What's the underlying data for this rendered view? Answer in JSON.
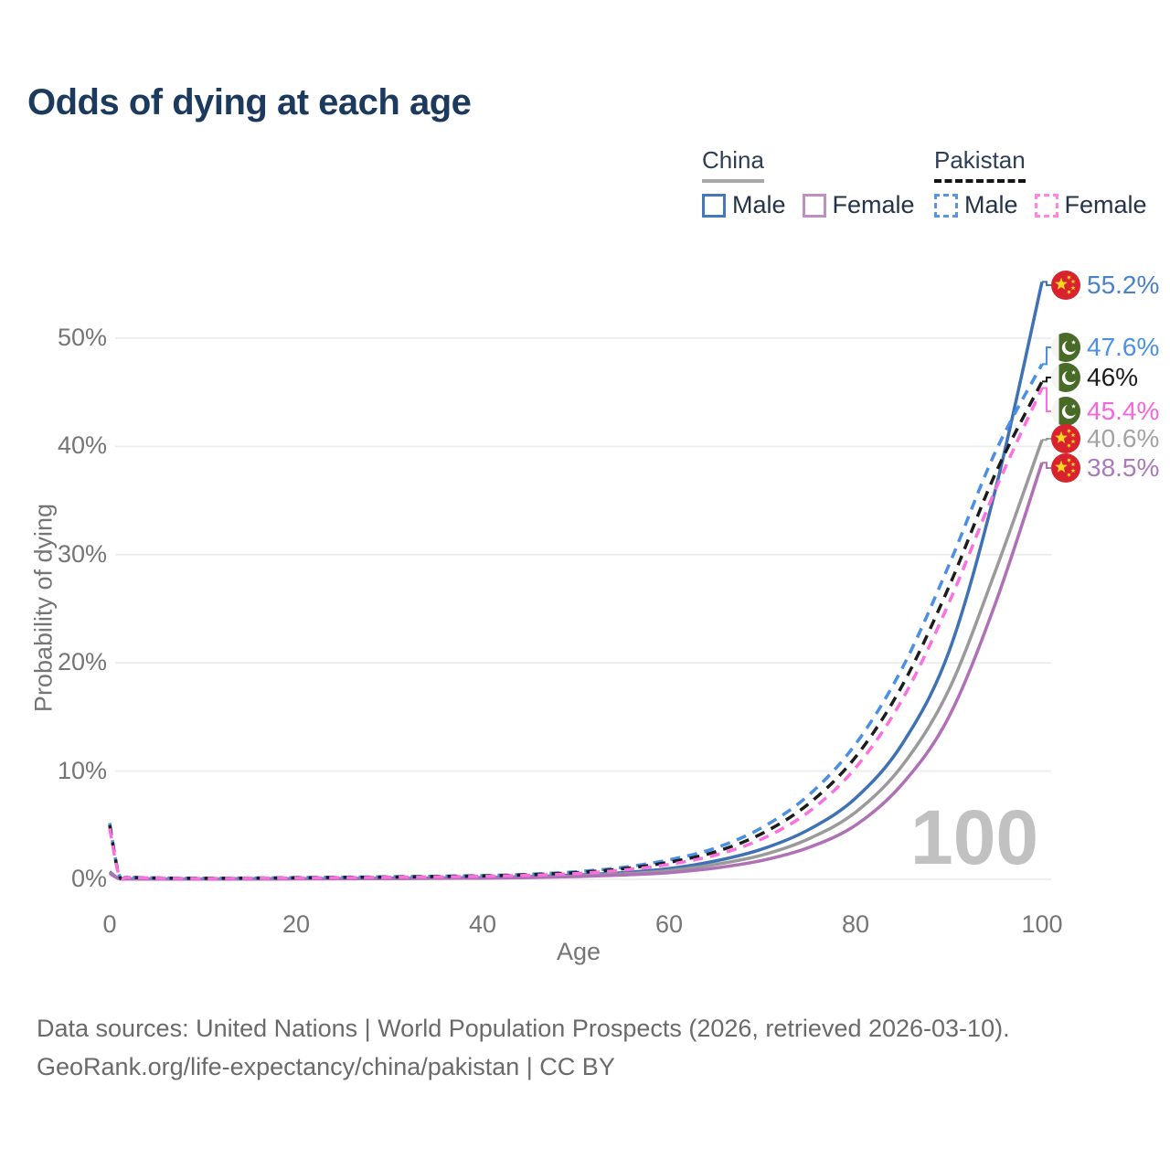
{
  "header": {
    "title": "Odds of dying at each age"
  },
  "legend": {
    "groups": [
      {
        "id": "china",
        "label": "China",
        "line_style": "solid",
        "line_color": "#a8a8a8",
        "items": [
          {
            "label": "Male",
            "color": "#4678b8",
            "dashed": false
          },
          {
            "label": "Female",
            "color": "#c08ec2",
            "dashed": false
          }
        ]
      },
      {
        "id": "pakistan",
        "label": "Pakistan",
        "line_style": "dashed",
        "line_color": "#151515",
        "items": [
          {
            "label": "Male",
            "color": "#5b93e3",
            "dashed": true
          },
          {
            "label": "Female",
            "color": "#ff84e4",
            "dashed": true
          }
        ]
      }
    ]
  },
  "chart_data": {
    "type": "line",
    "title": "Odds of dying at each age",
    "xlabel": "Age",
    "ylabel": "Probability of dying",
    "xlim": [
      0,
      100
    ],
    "ylim": [
      0,
      57
    ],
    "x_ticks": [
      0,
      20,
      40,
      60,
      80,
      100
    ],
    "y_ticks": [
      {
        "v": 0,
        "label": "0%"
      },
      {
        "v": 10,
        "label": "10%"
      },
      {
        "v": 20,
        "label": "20%"
      },
      {
        "v": 30,
        "label": "30%"
      },
      {
        "v": 40,
        "label": "40%"
      },
      {
        "v": 50,
        "label": "50%"
      }
    ],
    "grid": "horizontal",
    "legend_position": "top-right",
    "watermark": "100",
    "ages": [
      0,
      1,
      2,
      5,
      10,
      15,
      20,
      25,
      30,
      35,
      40,
      45,
      50,
      55,
      60,
      65,
      70,
      75,
      80,
      85,
      90,
      95,
      100
    ],
    "series": [
      {
        "id": "china-male",
        "name": "China — Male",
        "country": "China",
        "sex": "Male",
        "color": "#3f72b5",
        "dashed": false,
        "flag": "china",
        "end_value": 55.2,
        "end_label": "55.2%",
        "label_color": "#4a82c6",
        "values": [
          0.7,
          0.08,
          0.05,
          0.03,
          0.03,
          0.04,
          0.06,
          0.08,
          0.1,
          0.13,
          0.17,
          0.25,
          0.4,
          0.62,
          1.0,
          1.7,
          2.8,
          4.6,
          7.5,
          12.5,
          21.0,
          36.0,
          55.2
        ]
      },
      {
        "id": "china-both",
        "name": "China — Both sexes",
        "country": "China",
        "sex": "Both",
        "color": "#9a9a9a",
        "dashed": false,
        "flag": "china",
        "end_value": 40.6,
        "end_label": "40.6%",
        "label_color": "#a3a3a3",
        "values": [
          0.62,
          0.07,
          0.04,
          0.03,
          0.02,
          0.03,
          0.05,
          0.07,
          0.08,
          0.11,
          0.14,
          0.21,
          0.32,
          0.5,
          0.8,
          1.38,
          2.25,
          3.75,
          6.2,
          10.5,
          17.5,
          28.5,
          40.6
        ]
      },
      {
        "id": "china-female",
        "name": "China — Female",
        "country": "China",
        "sex": "Female",
        "color": "#b070b6",
        "dashed": false,
        "flag": "china",
        "end_value": 38.5,
        "end_label": "38.5%",
        "label_color": "#ab7ab8",
        "values": [
          0.55,
          0.06,
          0.04,
          0.02,
          0.02,
          0.03,
          0.04,
          0.05,
          0.07,
          0.09,
          0.11,
          0.16,
          0.25,
          0.4,
          0.62,
          1.05,
          1.75,
          2.95,
          5.0,
          8.8,
          15.0,
          25.5,
          38.5
        ]
      },
      {
        "id": "pakistan-male",
        "name": "Pakistan — Male",
        "country": "Pakistan",
        "sex": "Male",
        "color": "#4a8ee6",
        "dashed": true,
        "flag": "pakistan",
        "end_value": 47.6,
        "end_label": "47.6%",
        "label_color": "#4a90e8",
        "values": [
          5.2,
          0.45,
          0.22,
          0.13,
          0.1,
          0.12,
          0.16,
          0.2,
          0.24,
          0.29,
          0.35,
          0.47,
          0.7,
          1.1,
          1.8,
          2.9,
          4.8,
          7.8,
          12.5,
          19.5,
          29.0,
          39.5,
          47.6
        ]
      },
      {
        "id": "pakistan-both",
        "name": "Pakistan — Both sexes",
        "country": "Pakistan",
        "sex": "Both",
        "color": "#1c1c1c",
        "dashed": true,
        "flag": "pakistan",
        "end_value": 46.0,
        "end_label": "46%",
        "label_color": "#1c1c1c",
        "values": [
          5.0,
          0.42,
          0.2,
          0.12,
          0.09,
          0.11,
          0.14,
          0.18,
          0.21,
          0.26,
          0.31,
          0.42,
          0.62,
          0.97,
          1.58,
          2.55,
          4.25,
          7.0,
          11.3,
          17.9,
          27.0,
          37.5,
          46.0
        ]
      },
      {
        "id": "pakistan-female",
        "name": "Pakistan — Female",
        "country": "Pakistan",
        "sex": "Female",
        "color": "#fa70df",
        "dashed": true,
        "flag": "pakistan",
        "end_value": 45.4,
        "end_label": "45.4%",
        "label_color": "#fb63dd",
        "values": [
          4.7,
          0.4,
          0.19,
          0.11,
          0.08,
          0.1,
          0.12,
          0.16,
          0.19,
          0.23,
          0.28,
          0.37,
          0.54,
          0.85,
          1.38,
          2.25,
          3.75,
          6.25,
          10.3,
          16.6,
          25.5,
          36.0,
          45.4
        ]
      }
    ],
    "colors": {
      "grid": "#ececec",
      "tick_text": "#757575",
      "title_text": "#1c3a5e",
      "watermark_text": "#c1c1c1",
      "china_flag_red": "#d8232f",
      "china_flag_gold": "#ffd824",
      "pakistan_flag_green": "#486b28"
    }
  },
  "footer": {
    "line1": "Data sources: United Nations | World Population Prospects (2026, retrieved 2026-03-10).",
    "line2": "GeoRank.org/life-expectancy/china/pakistan | CC BY"
  }
}
